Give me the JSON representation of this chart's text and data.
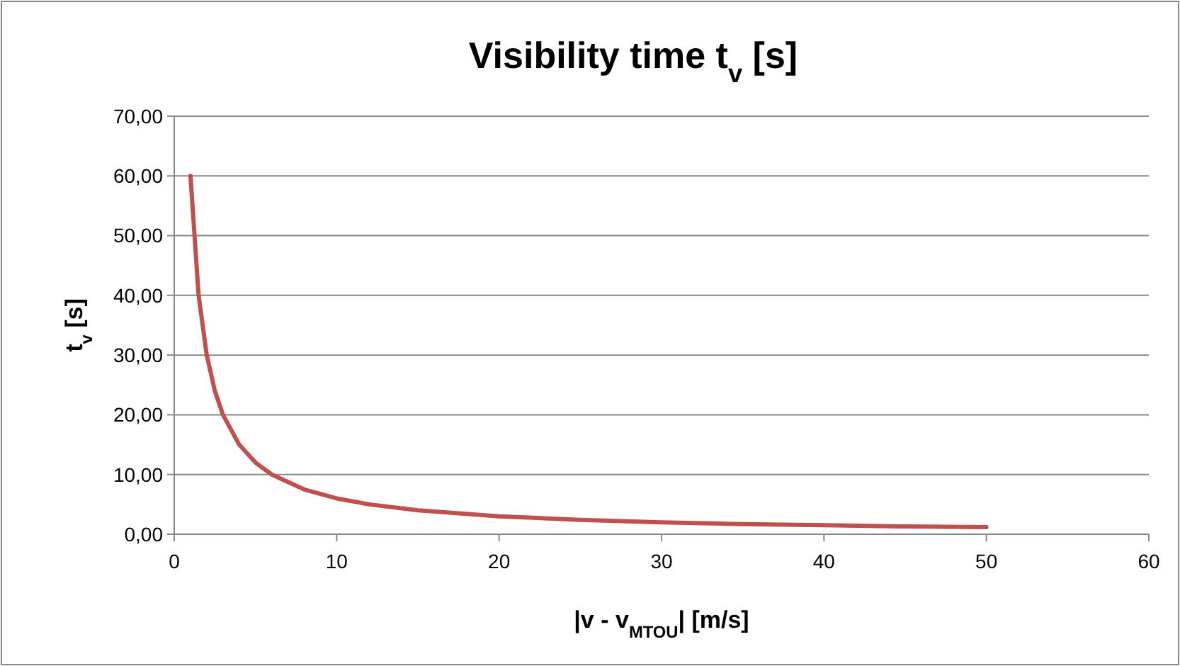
{
  "chart_data": {
    "type": "line",
    "title": "Visibility time t$_{v}$ [s]",
    "xlabel": "|v - v$_{MTOU}$| [m/s]",
    "ylabel": "t$_{v}$ [s]",
    "x": [
      1,
      1.5,
      2,
      2.5,
      3,
      4,
      5,
      6,
      8,
      10,
      12,
      15,
      20,
      25,
      30,
      35,
      40,
      45,
      50
    ],
    "series": [
      {
        "color": "#c0504d",
        "values": [
          60,
          40,
          30,
          24,
          20,
          15,
          12,
          10,
          7.5,
          6,
          5,
          4,
          3,
          2.4,
          2,
          1.7,
          1.5,
          1.3,
          1.2
        ]
      }
    ],
    "xlim": [
      0,
      60
    ],
    "xticks": [
      0,
      10,
      20,
      30,
      40,
      50,
      60
    ],
    "ylim": [
      0,
      70
    ],
    "yticks": [
      {
        "value": 0,
        "label": "0,00"
      },
      {
        "value": 10,
        "label": "10,00"
      },
      {
        "value": 20,
        "label": "20,00"
      },
      {
        "value": 30,
        "label": "30,00"
      },
      {
        "value": 40,
        "label": "40,00"
      },
      {
        "value": 50,
        "label": "50,00"
      },
      {
        "value": 60,
        "label": "60,00"
      },
      {
        "value": 70,
        "label": "70,00"
      }
    ],
    "grid": "y",
    "marker": "none",
    "line_style": "solid"
  }
}
